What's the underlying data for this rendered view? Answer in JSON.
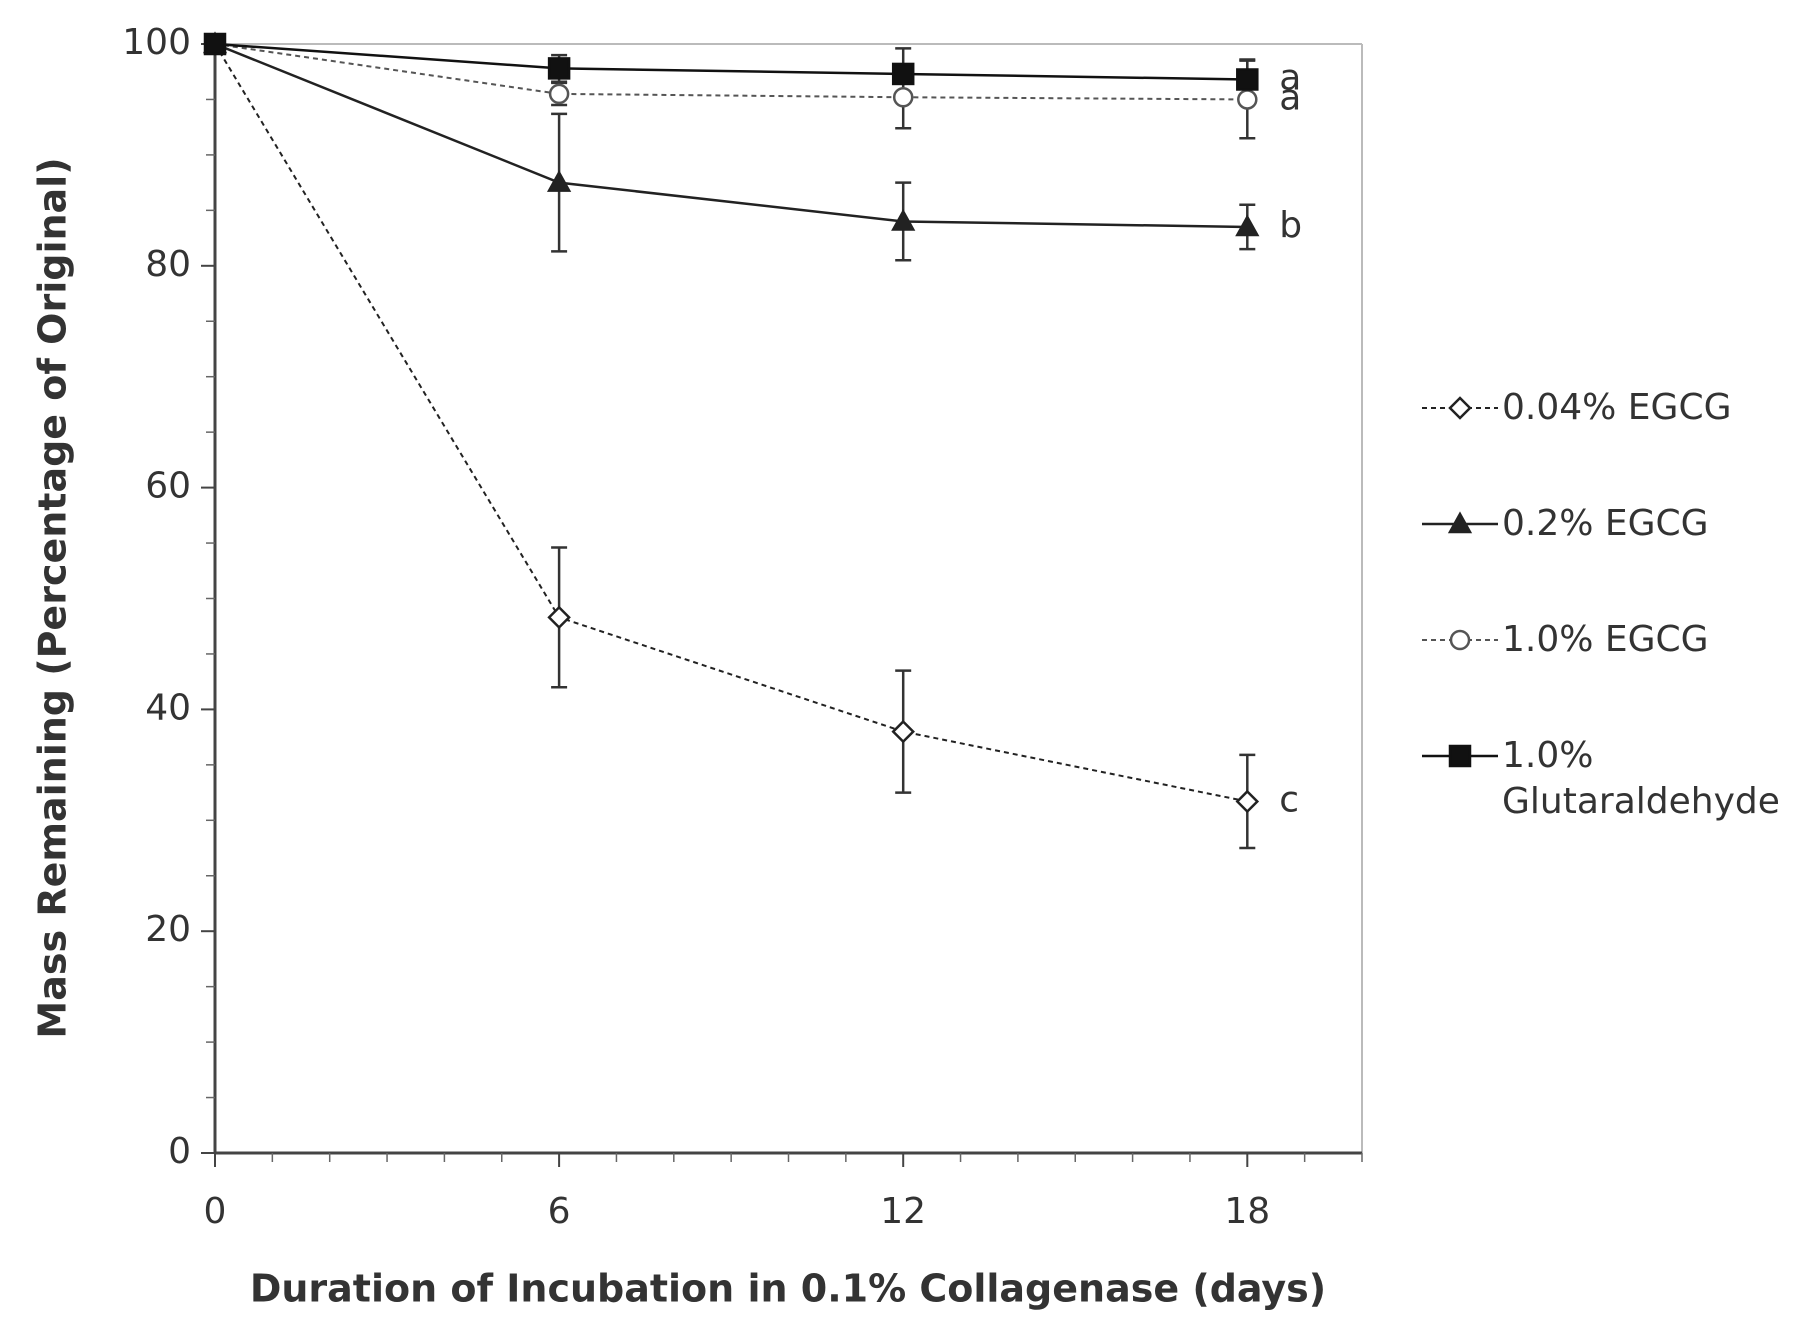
{
  "chart_data": {
    "type": "line",
    "xlabel": "Duration of Incubation in 0.1% Collagenase (days)",
    "ylabel": "Mass Remaining (Percentage of Original)",
    "x": [
      0,
      6,
      12,
      18
    ],
    "xlim": [
      0,
      20
    ],
    "xticks": [
      0,
      6,
      12,
      18
    ],
    "xminorticks": [
      1,
      2,
      3,
      4,
      5,
      7,
      8,
      9,
      10,
      11,
      13,
      14,
      15,
      16,
      17,
      19,
      20
    ],
    "ylim": [
      0,
      100
    ],
    "yticks": [
      0,
      20,
      40,
      60,
      80,
      100
    ],
    "yminorticks": [
      5,
      10,
      15,
      25,
      30,
      35,
      45,
      50,
      55,
      65,
      70,
      75,
      85,
      90,
      95
    ],
    "legend": "right",
    "series": [
      {
        "name": "0.04% EGCG",
        "color": "#222222",
        "dashed": true,
        "marker": "diamond",
        "values": [
          100,
          48.3,
          38,
          31.7
        ],
        "errors": [
          0,
          6.3,
          5.5,
          4.2
        ]
      },
      {
        "name": "0.2% EGCG",
        "color": "#222222",
        "dashed": false,
        "marker": "triangle",
        "values": [
          100,
          87.5,
          84,
          83.5
        ],
        "errors": [
          0,
          6.2,
          3.5,
          2
        ]
      },
      {
        "name": "1.0% EGCG",
        "color": "#555555",
        "dashed": true,
        "marker": "circle",
        "values": [
          100,
          95.5,
          95.2,
          95
        ],
        "errors": [
          0,
          1,
          2.8,
          3.5
        ]
      },
      {
        "name": "1.0% Glutaraldehyde",
        "color": "#111111",
        "dashed": false,
        "marker": "square",
        "values": [
          100,
          97.8,
          97.3,
          96.8
        ],
        "errors": [
          0,
          1.2,
          2.3,
          1.8
        ]
      }
    ],
    "annotations": [
      {
        "text": "a",
        "series": 3
      },
      {
        "text": "a",
        "series": 2
      },
      {
        "text": "b",
        "series": 1
      },
      {
        "text": "c",
        "series": 0
      }
    ]
  }
}
